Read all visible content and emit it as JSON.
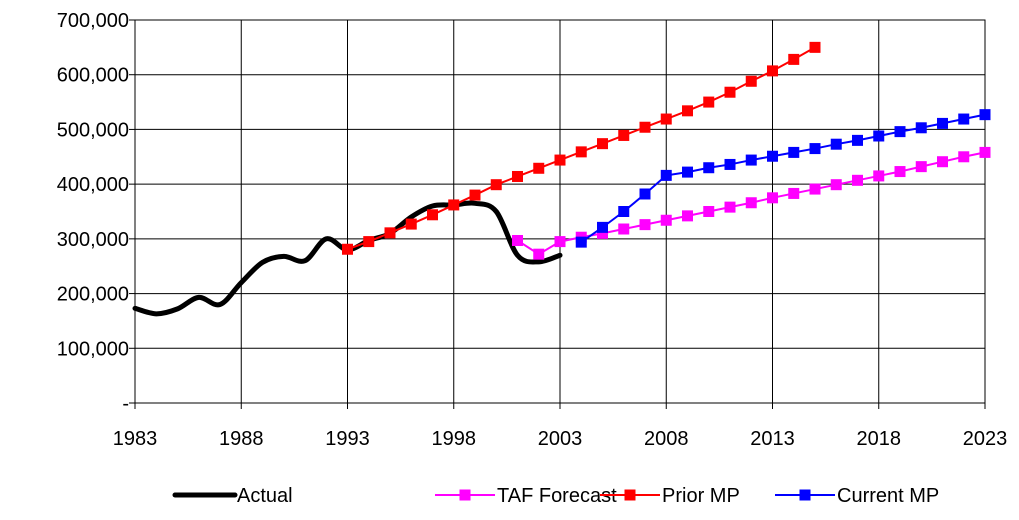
{
  "chart_data": {
    "type": "line",
    "title": "",
    "xlabel": "",
    "ylabel": "",
    "xlim": [
      1983,
      2023
    ],
    "ylim": [
      0,
      700000
    ],
    "x_ticks": [
      "1983",
      "1988",
      "1993",
      "1998",
      "2003",
      "2008",
      "2013",
      "2018",
      "2023"
    ],
    "y_ticks": [
      "-",
      "100,000",
      "200,000",
      "300,000",
      "400,000",
      "500,000",
      "600,000",
      "700,000"
    ],
    "grid": true,
    "legend_position": "bottom",
    "series": [
      {
        "name": "Actual",
        "color": "#000000",
        "marker": "none",
        "smooth": true,
        "x": [
          1983,
          1984,
          1985,
          1986,
          1987,
          1988,
          1989,
          1990,
          1991,
          1992,
          1993,
          1994,
          1995,
          1996,
          1997,
          1998,
          1999,
          2000,
          2001,
          2002,
          2003
        ],
        "y": [
          173000,
          163000,
          172000,
          193000,
          180000,
          220000,
          257000,
          268000,
          260000,
          300000,
          280000,
          297000,
          310000,
          340000,
          360000,
          362000,
          365000,
          350000,
          270000,
          258000,
          270000
        ]
      },
      {
        "name": "TAF Forecast",
        "color": "#ff00ff",
        "marker": "square",
        "x": [
          2001,
          2002,
          2003,
          2004,
          2005,
          2006,
          2007,
          2008,
          2009,
          2010,
          2011,
          2012,
          2013,
          2014,
          2015,
          2016,
          2017,
          2018,
          2019,
          2020,
          2021,
          2022,
          2023
        ],
        "y": [
          297000,
          272000,
          295000,
          303000,
          310000,
          318000,
          326000,
          334000,
          342000,
          350000,
          358000,
          366000,
          375000,
          383000,
          391000,
          399000,
          407000,
          415000,
          423000,
          432000,
          441000,
          450000,
          458000
        ]
      },
      {
        "name": "Prior MP",
        "color": "#ff0000",
        "marker": "square",
        "x": [
          1993,
          1994,
          1995,
          1996,
          1997,
          1998,
          1999,
          2000,
          2001,
          2002,
          2003,
          2004,
          2005,
          2006,
          2007,
          2008,
          2009,
          2010,
          2011,
          2012,
          2013,
          2014,
          2015
        ],
        "y": [
          281000,
          295000,
          311000,
          327000,
          344000,
          362000,
          380000,
          399000,
          414000,
          429000,
          444000,
          459000,
          474000,
          489000,
          504000,
          519000,
          534000,
          550000,
          568000,
          588000,
          607000,
          628000,
          650000
        ]
      },
      {
        "name": "Current MP",
        "color": "#0000ff",
        "marker": "square",
        "x": [
          2004,
          2005,
          2006,
          2007,
          2008,
          2009,
          2010,
          2011,
          2012,
          2013,
          2014,
          2015,
          2016,
          2017,
          2018,
          2019,
          2020,
          2021,
          2022,
          2023
        ],
        "y": [
          294000,
          321000,
          350000,
          382000,
          416000,
          422000,
          430000,
          436000,
          444000,
          451000,
          458000,
          465000,
          473000,
          480000,
          488000,
          496000,
          503000,
          511000,
          519000,
          527000
        ]
      }
    ]
  }
}
